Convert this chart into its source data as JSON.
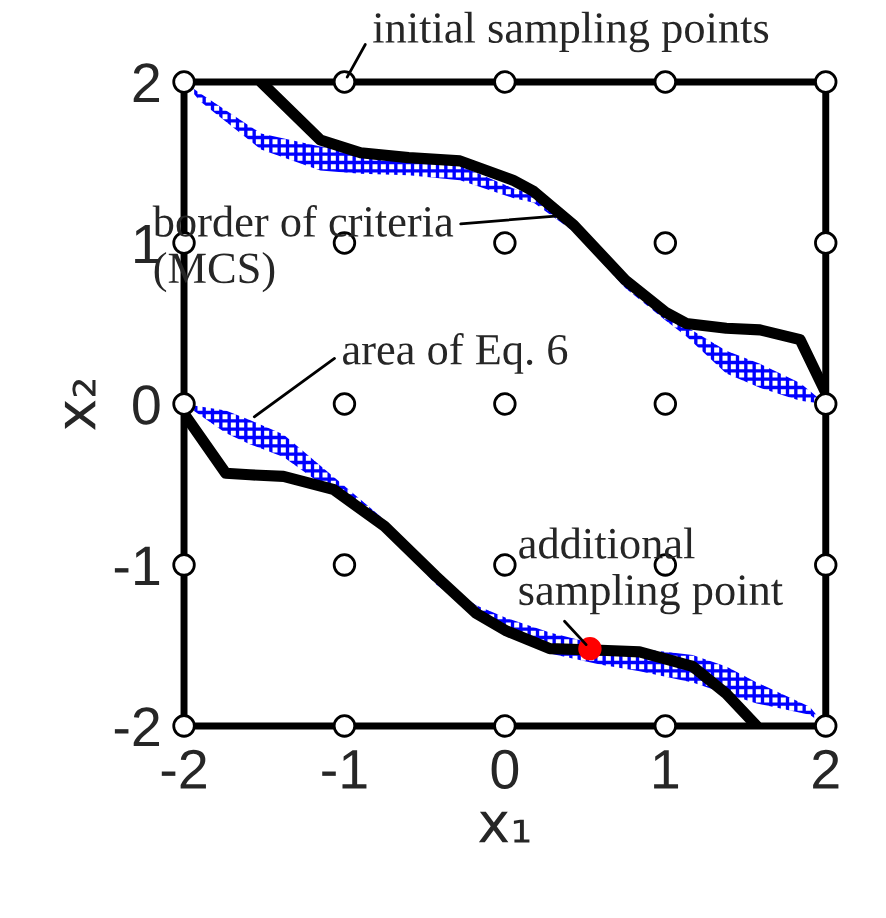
{
  "chart_data": {
    "type": "scatter",
    "xlabel": "x₁",
    "ylabel": "x₂",
    "xlim": [
      -2,
      2
    ],
    "ylim": [
      -2,
      2
    ],
    "xticks": [
      -2,
      -1,
      0,
      1,
      2
    ],
    "yticks": [
      -2,
      -1,
      0,
      1,
      2
    ],
    "grid": false,
    "series": [
      {
        "type": "line",
        "color": "#000000",
        "x": [
          -2,
          -1.9,
          -1.52,
          -1.15,
          -0.9,
          -0.6,
          -0.28,
          0.05,
          0.18,
          0.43,
          0.75,
          1.0,
          1.13,
          1.38,
          1.59,
          1.84,
          2.0
        ],
        "values": [
          null,
          null,
          2,
          1.64,
          1.56,
          1.53,
          1.51,
          1.39,
          1.32,
          1.11,
          0.77,
          0.57,
          0.5,
          0.47,
          0.46,
          0.4,
          0.07
        ],
        "upper": [
          2,
          1.93,
          1.68,
          1.6,
          1.56,
          1.53,
          1.48,
          1.34,
          1.3,
          1.12,
          0.78,
          0.58,
          0.48,
          0.33,
          0.25,
          0.13,
          0.0
        ],
        "lower": [
          2,
          1.88,
          1.58,
          1.45,
          1.43,
          1.42,
          1.39,
          1.28,
          1.25,
          1.07,
          0.72,
          0.52,
          0.42,
          0.19,
          0.1,
          0.02,
          0.0
        ]
      },
      {
        "type": "line",
        "color": "#000000",
        "x": [
          -2,
          -1.74,
          -1.59,
          -1.38,
          -1.07,
          -0.75,
          -0.43,
          -0.18,
          0.01,
          0.28,
          0.6,
          0.84,
          1.17,
          1.38,
          1.57,
          1.9,
          2
        ],
        "values": [
          -0.06,
          -0.43,
          -0.44,
          -0.45,
          -0.53,
          -0.76,
          -1.07,
          -1.3,
          -1.41,
          -1.52,
          -1.53,
          -1.54,
          -1.63,
          -1.8,
          -2,
          null,
          null
        ],
        "upper": [
          0,
          -0.04,
          -0.1,
          -0.19,
          -0.45,
          -0.72,
          -1.07,
          -1.25,
          -1.33,
          -1.42,
          -1.5,
          -1.52,
          -1.56,
          -1.63,
          -1.73,
          -1.88,
          -2
        ],
        "lower": [
          0,
          -0.18,
          -0.25,
          -0.33,
          -0.55,
          -0.78,
          -1.12,
          -1.3,
          -1.4,
          -1.55,
          -1.62,
          -1.66,
          -1.73,
          -1.8,
          -1.86,
          -1.93,
          -2
        ]
      },
      {
        "color": "#ffffff",
        "marker": "circle",
        "x": [
          -2,
          -1,
          0,
          1,
          2,
          -2,
          -1,
          0,
          1,
          2,
          -2,
          -1,
          0,
          1,
          2,
          -2,
          -1,
          0,
          1,
          2,
          -2,
          -1,
          0,
          1,
          2
        ],
        "values": [
          2,
          2,
          2,
          2,
          2,
          1,
          1,
          1,
          1,
          1,
          0,
          0,
          0,
          0,
          0,
          -1,
          -1,
          -1,
          -1,
          -1,
          -2,
          -2,
          -2,
          -2,
          -2
        ]
      },
      {
        "color": "#ff0000",
        "marker": "circle",
        "x": [
          0.53
        ],
        "values": [
          -1.52
        ]
      }
    ],
    "annotations": [
      {
        "text": "initial sampling points",
        "x": -1,
        "y": 2
      },
      {
        "text": "border of criteria\n(MCS)",
        "x": 0.35,
        "y": 1.17
      },
      {
        "text": "area of Eq. 6",
        "x": -1.59,
        "y": -0.1
      },
      {
        "text": "additional\nsampling point",
        "x": 0.53,
        "y": -1.52
      }
    ]
  }
}
